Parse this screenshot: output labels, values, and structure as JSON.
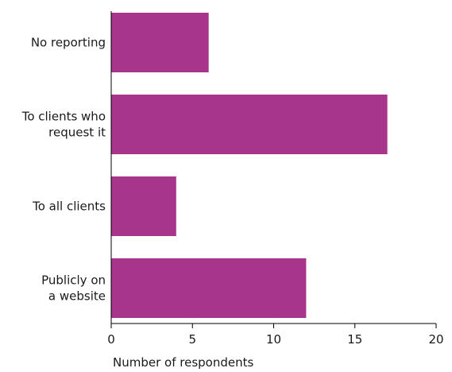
{
  "chart_data": {
    "type": "bar",
    "orientation": "horizontal",
    "categories": [
      "No reporting",
      "To clients who request it",
      "To all clients",
      "Publicly on a website"
    ],
    "category_label_lines": [
      [
        "No reporting"
      ],
      [
        "To clients who",
        "request it"
      ],
      [
        "To all clients"
      ],
      [
        "Publicly on",
        "a website"
      ]
    ],
    "values": [
      6,
      17,
      4,
      12
    ],
    "title": "",
    "xlabel": "Number of respondents",
    "ylabel": "",
    "xlim": [
      0,
      20
    ],
    "x_ticks": [
      0,
      5,
      10,
      15,
      20
    ],
    "grid": false,
    "legend": "none",
    "bar_color": "#a8358c"
  }
}
